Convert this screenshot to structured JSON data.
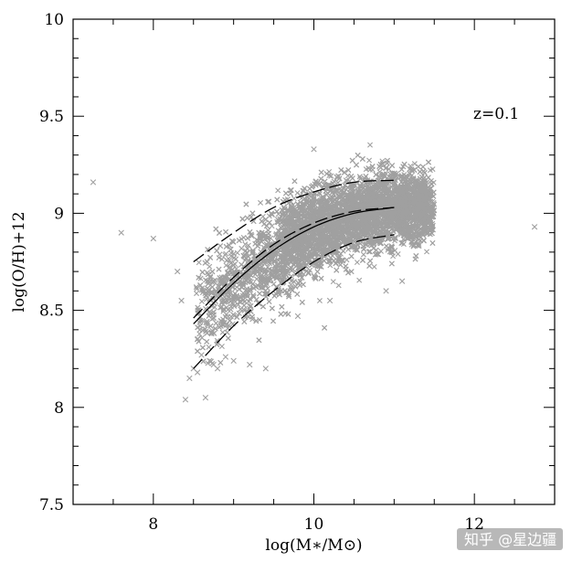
{
  "chart_data": {
    "type": "scatter",
    "title": "",
    "xlabel": "log(M∗/M⊙)",
    "ylabel": "log(O/H)+12",
    "xlim": [
      7,
      13
    ],
    "ylim": [
      7.5,
      10
    ],
    "x_ticks": [
      {
        "value": 8,
        "label": "8"
      },
      {
        "value": 10,
        "label": "10"
      },
      {
        "value": 12,
        "label": "12"
      }
    ],
    "y_ticks": [
      {
        "value": 7.5,
        "label": "7.5"
      },
      {
        "value": 8,
        "label": "8"
      },
      {
        "value": 8.5,
        "label": "8.5"
      },
      {
        "value": 9,
        "label": "9"
      },
      {
        "value": 9.5,
        "label": "9.5"
      },
      {
        "value": 10,
        "label": "10"
      }
    ],
    "grid": false,
    "annotation": "z=0.1",
    "point_color": "#a0a0a0",
    "marker": "x",
    "scatter_core": {
      "description_ranges": "dense cloud of galaxies",
      "x_range": [
        8.5,
        11.5
      ],
      "relation": [
        {
          "x": 8.5,
          "y": 8.45
        },
        {
          "x": 9.0,
          "y": 8.63
        },
        {
          "x": 9.5,
          "y": 8.79
        },
        {
          "x": 10.0,
          "y": 8.91
        },
        {
          "x": 10.5,
          "y": 8.99
        },
        {
          "x": 11.0,
          "y": 9.03
        },
        {
          "x": 11.4,
          "y": 9.04
        }
      ],
      "spread": 0.12
    },
    "outliers": [
      {
        "x": 7.25,
        "y": 9.16
      },
      {
        "x": 7.6,
        "y": 8.9
      },
      {
        "x": 8.0,
        "y": 8.87
      },
      {
        "x": 8.3,
        "y": 8.7
      },
      {
        "x": 8.35,
        "y": 8.55
      },
      {
        "x": 8.4,
        "y": 8.04
      },
      {
        "x": 8.45,
        "y": 8.15
      },
      {
        "x": 8.5,
        "y": 8.2
      },
      {
        "x": 8.6,
        "y": 8.27
      },
      {
        "x": 8.7,
        "y": 8.24
      },
      {
        "x": 8.8,
        "y": 8.2
      },
      {
        "x": 8.9,
        "y": 8.26
      },
      {
        "x": 9.0,
        "y": 8.24
      },
      {
        "x": 9.2,
        "y": 8.22
      },
      {
        "x": 9.4,
        "y": 8.2
      },
      {
        "x": 8.55,
        "y": 8.18
      },
      {
        "x": 8.75,
        "y": 8.22
      },
      {
        "x": 8.65,
        "y": 8.05
      },
      {
        "x": 10.0,
        "y": 9.33
      },
      {
        "x": 12.75,
        "y": 8.93
      },
      {
        "x": 10.9,
        "y": 8.6
      },
      {
        "x": 11.1,
        "y": 8.65
      },
      {
        "x": 9.8,
        "y": 8.47
      },
      {
        "x": 10.2,
        "y": 8.55
      }
    ],
    "series": [
      {
        "style": "dashed",
        "x": [
          8.5,
          9.0,
          9.5,
          10.0,
          10.5,
          11.0
        ],
        "y": [
          8.75,
          8.9,
          9.03,
          9.11,
          9.16,
          9.17
        ]
      },
      {
        "style": "dashed",
        "x": [
          8.5,
          9.0,
          9.5,
          10.0,
          10.5,
          11.0
        ],
        "y": [
          8.46,
          8.67,
          8.84,
          8.95,
          9.01,
          9.03
        ]
      },
      {
        "style": "solid",
        "x": [
          8.5,
          9.0,
          9.5,
          10.0,
          10.5,
          11.0
        ],
        "y": [
          8.43,
          8.64,
          8.81,
          8.93,
          9.0,
          9.03
        ]
      },
      {
        "style": "dashed",
        "x": [
          8.5,
          9.0,
          9.5,
          10.0,
          10.5,
          11.0
        ],
        "y": [
          8.2,
          8.42,
          8.6,
          8.75,
          8.85,
          8.89
        ]
      }
    ]
  },
  "watermark": "知乎 @星边疆"
}
